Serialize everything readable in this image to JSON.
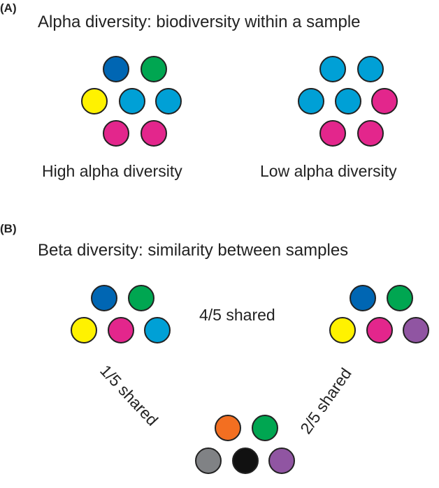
{
  "panel_a": {
    "label": "(A)",
    "title": "Alpha diversity: biodiversity within a sample",
    "high": {
      "caption": "High alpha diversity",
      "circles": [
        "#0066b3",
        "#00a651",
        "#fff200",
        "#00a0d6",
        "#00a0d6",
        "#e3268c",
        "#e3268c"
      ]
    },
    "low": {
      "caption": "Low alpha diversity",
      "circles": [
        "#00a0d6",
        "#00a0d6",
        "#00a0d6",
        "#00a0d6",
        "#e3268c",
        "#e3268c",
        "#e3268c"
      ]
    }
  },
  "panel_b": {
    "label": "(B)",
    "title": "Beta diversity: similarity between samples",
    "sample_left": {
      "circles": [
        "#0066b3",
        "#00a651",
        "#fff200",
        "#e3268c",
        "#00a0d6"
      ]
    },
    "sample_right": {
      "circles": [
        "#0066b3",
        "#00a651",
        "#fff200",
        "#e3268c",
        "#9055a2"
      ]
    },
    "sample_bottom": {
      "circles": [
        "#f36f21",
        "#00a651",
        "#808285",
        "#111111",
        "#9055a2"
      ]
    },
    "label_top": "4/5 shared",
    "label_left": "1/5 shared",
    "label_right": "2/5 shared"
  }
}
